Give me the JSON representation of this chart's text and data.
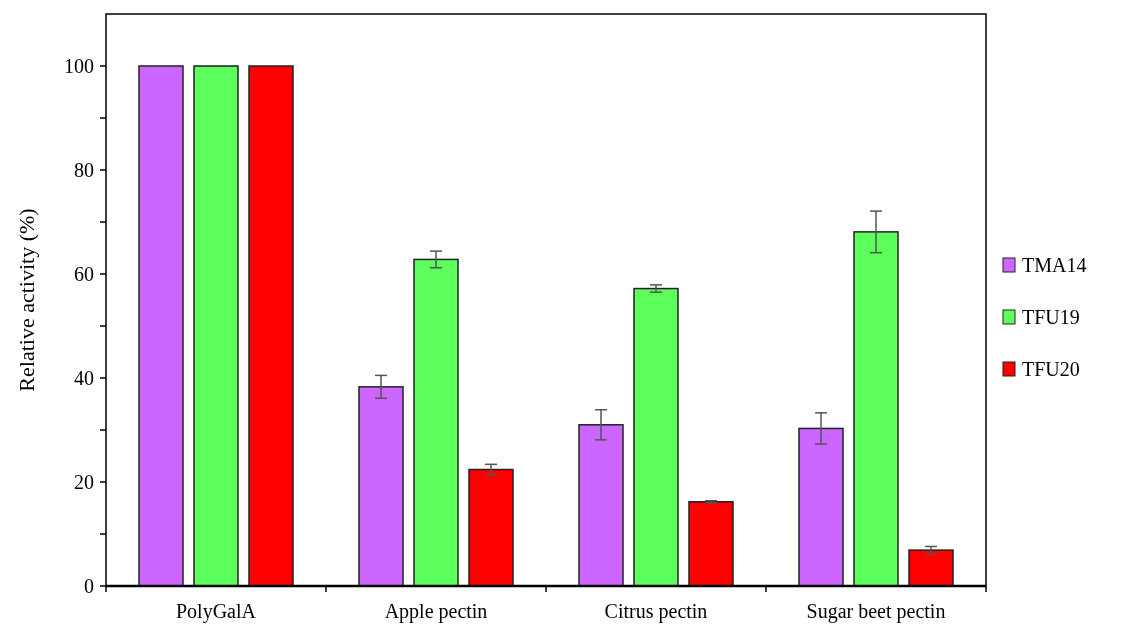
{
  "chart_data": {
    "type": "bar",
    "ylabel": "Relative activity (%)",
    "categories": [
      "PolyGalA",
      "Apple pectin",
      "Citrus pectin",
      "Sugar beet pectin"
    ],
    "series": [
      {
        "name": "TMA14",
        "color": "#cc66ff",
        "values": [
          100,
          38.3,
          31,
          30.3
        ],
        "errors": [
          null,
          2.2,
          2.9,
          3
        ]
      },
      {
        "name": "TFU19",
        "color": "#5cff5c",
        "values": [
          100,
          62.8,
          57.2,
          68.1
        ],
        "errors": [
          null,
          1.6,
          0.7,
          4
        ]
      },
      {
        "name": "TFU20",
        "color": "#ff0000",
        "values": [
          100,
          22.4,
          16.2,
          6.9
        ],
        "errors": [
          null,
          1,
          0.2,
          0.7
        ]
      }
    ],
    "ylim": [
      0,
      110
    ],
    "yticks": [
      0,
      {
        "value": 10,
        "label": null
      },
      20,
      {
        "value": 30,
        "label": null
      },
      40,
      {
        "value": 50,
        "label": null
      },
      60,
      {
        "value": 70,
        "label": null
      },
      80,
      {
        "value": 90,
        "label": null
      },
      100
    ],
    "grid": false,
    "legend": "right"
  }
}
